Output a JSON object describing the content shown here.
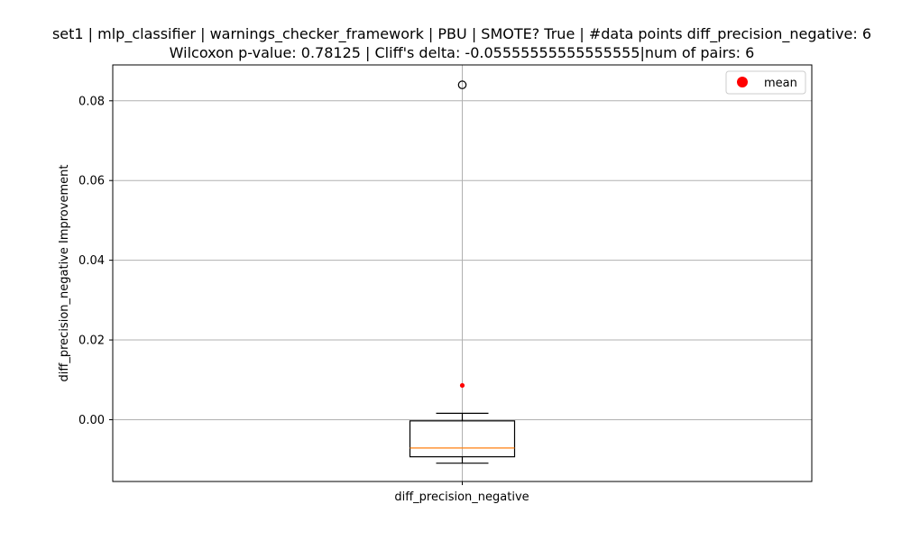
{
  "chart_data": {
    "type": "box",
    "title": "set1 | mlp_classifier | warnings_checker_framework | PBU | SMOTE? True | #data points diff_precision_negative: 6",
    "subtitle": "Wilcoxon p-value: 0.78125 | Cliff's delta: -0.05555555555555555|num of pairs: 6",
    "xlabel": "",
    "ylabel": "diff_precision_negative Improvement",
    "categories": [
      "diff_precision_negative"
    ],
    "ylim": [
      -0.0155,
      0.089
    ],
    "yticks": [
      0.0,
      0.02,
      0.04,
      0.06,
      0.08
    ],
    "ytick_labels": [
      "0.00",
      "0.02",
      "0.04",
      "0.06",
      "0.08"
    ],
    "grid": true,
    "legend": {
      "position": "upper right",
      "entries": [
        "mean"
      ]
    },
    "box": {
      "whisker_low": -0.0109,
      "q1": -0.0093,
      "median": -0.0071,
      "q3": -0.0003,
      "whisker_high": 0.0016,
      "outliers": [
        0.084
      ],
      "mean": 0.0086
    },
    "colors": {
      "box": "#000000",
      "median": "#ff7f0e",
      "mean": "#ff0000",
      "grid": "#b0b0b0"
    }
  }
}
